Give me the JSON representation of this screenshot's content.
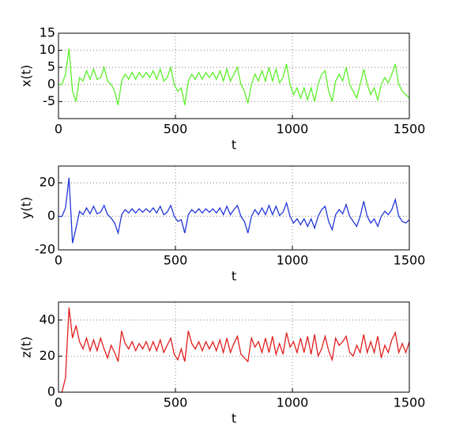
{
  "chart_data": [
    {
      "type": "line",
      "xlabel": "t",
      "ylabel": "x(t)",
      "color": "#5cf02a",
      "grid": true,
      "xlim": [
        0,
        1500
      ],
      "xticks": [
        0,
        500,
        1000,
        1500
      ],
      "ylim": [
        -10,
        15
      ],
      "yticks": [
        -5,
        0,
        5,
        10,
        15
      ],
      "x": [
        0,
        15,
        30,
        45,
        60,
        75,
        90,
        105,
        120,
        135,
        150,
        165,
        180,
        195,
        210,
        225,
        240,
        255,
        270,
        285,
        300,
        315,
        330,
        345,
        360,
        375,
        390,
        405,
        420,
        435,
        450,
        465,
        480,
        495,
        510,
        525,
        540,
        555,
        570,
        585,
        600,
        615,
        630,
        645,
        660,
        675,
        690,
        705,
        720,
        735,
        750,
        765,
        780,
        795,
        810,
        825,
        840,
        855,
        870,
        885,
        900,
        915,
        930,
        945,
        960,
        975,
        990,
        1005,
        1020,
        1035,
        1050,
        1065,
        1080,
        1095,
        1110,
        1125,
        1140,
        1155,
        1170,
        1185,
        1200,
        1215,
        1230,
        1245,
        1260,
        1275,
        1290,
        1305,
        1320,
        1335,
        1350,
        1365,
        1380,
        1395,
        1410,
        1425,
        1440,
        1455,
        1470,
        1485,
        1500
      ],
      "values": [
        0,
        0,
        3,
        10.5,
        -2,
        -5,
        2,
        1,
        4,
        1.5,
        4.5,
        1.5,
        2,
        5,
        1,
        0,
        -2,
        -6,
        1,
        3,
        1.5,
        3.5,
        1.5,
        3.5,
        2,
        3.5,
        2,
        4,
        1.5,
        4.5,
        1,
        2,
        5,
        0,
        -2,
        -1,
        -6,
        1,
        3,
        1.5,
        3.5,
        1.5,
        3.5,
        2,
        3.5,
        1.5,
        4,
        1,
        4.5,
        1,
        3,
        5,
        0,
        -2,
        -5.5,
        0,
        3,
        1,
        4,
        1,
        5,
        1,
        4.5,
        0.5,
        2,
        6,
        0,
        -3,
        -1,
        -4,
        -1,
        -4.5,
        -1,
        -5,
        0,
        3,
        4,
        -2,
        -5,
        1,
        3,
        1,
        5,
        0,
        -2,
        -4,
        0,
        4.5,
        0,
        -3,
        -1,
        -4.5,
        0,
        2,
        0.5,
        3,
        6,
        0,
        -2,
        -3,
        -4
      ]
    },
    {
      "type": "line",
      "xlabel": "t",
      "ylabel": "y(t)",
      "color": "#2236d8",
      "grid": true,
      "xlim": [
        0,
        1500
      ],
      "xticks": [
        0,
        500,
        1000,
        1500
      ],
      "ylim": [
        -20,
        30
      ],
      "yticks": [
        -20,
        0,
        20
      ],
      "x": [
        0,
        15,
        30,
        45,
        60,
        75,
        90,
        105,
        120,
        135,
        150,
        165,
        180,
        195,
        210,
        225,
        240,
        255,
        270,
        285,
        300,
        315,
        330,
        345,
        360,
        375,
        390,
        405,
        420,
        435,
        450,
        465,
        480,
        495,
        510,
        525,
        540,
        555,
        570,
        585,
        600,
        615,
        630,
        645,
        660,
        675,
        690,
        705,
        720,
        735,
        750,
        765,
        780,
        795,
        810,
        825,
        840,
        855,
        870,
        885,
        900,
        915,
        930,
        945,
        960,
        975,
        990,
        1005,
        1020,
        1035,
        1050,
        1065,
        1080,
        1095,
        1110,
        1125,
        1140,
        1155,
        1170,
        1185,
        1200,
        1215,
        1230,
        1245,
        1260,
        1275,
        1290,
        1305,
        1320,
        1335,
        1350,
        1365,
        1380,
        1395,
        1410,
        1425,
        1440,
        1455,
        1470,
        1485,
        1500
      ],
      "values": [
        0,
        0,
        5,
        23,
        -16,
        -7,
        3,
        1,
        5,
        1.5,
        6,
        1.5,
        2.5,
        6.5,
        1,
        -1,
        -4,
        -10,
        1,
        4,
        2,
        4.5,
        2,
        4.5,
        2.5,
        4.5,
        2.5,
        5,
        2,
        6,
        1,
        2.5,
        6.5,
        0,
        -3,
        -2,
        -10,
        1,
        4,
        2,
        4.5,
        2,
        4.5,
        2.5,
        4.5,
        2,
        5,
        1,
        6,
        1,
        4,
        6.5,
        0,
        -3,
        -10,
        0,
        4,
        1,
        5,
        1,
        6.5,
        1,
        6,
        0.5,
        2.5,
        8,
        0,
        -4,
        -1.5,
        -5,
        -1.5,
        -6,
        -1.5,
        -7,
        0,
        4,
        6,
        -3,
        -8,
        1,
        4,
        1.5,
        7,
        0,
        -3,
        -6,
        0,
        9,
        0,
        -4,
        -1.5,
        -6,
        0,
        3,
        1,
        4,
        10,
        0,
        -3,
        -4,
        -2
      ]
    },
    {
      "type": "line",
      "xlabel": "t",
      "ylabel": "z(t)",
      "color": "#e01e1e",
      "grid": true,
      "xlim": [
        0,
        1500
      ],
      "xticks": [
        0,
        500,
        1000,
        1500
      ],
      "ylim": [
        0,
        50
      ],
      "yticks": [
        0,
        20,
        40
      ],
      "x": [
        0,
        15,
        30,
        45,
        60,
        75,
        90,
        105,
        120,
        135,
        150,
        165,
        180,
        195,
        210,
        225,
        240,
        255,
        270,
        285,
        300,
        315,
        330,
        345,
        360,
        375,
        390,
        405,
        420,
        435,
        450,
        465,
        480,
        495,
        510,
        525,
        540,
        555,
        570,
        585,
        600,
        615,
        630,
        645,
        660,
        675,
        690,
        705,
        720,
        735,
        750,
        765,
        780,
        795,
        810,
        825,
        840,
        855,
        870,
        885,
        900,
        915,
        930,
        945,
        960,
        975,
        990,
        1005,
        1020,
        1035,
        1050,
        1065,
        1080,
        1095,
        1110,
        1125,
        1140,
        1155,
        1170,
        1185,
        1200,
        1215,
        1230,
        1245,
        1260,
        1275,
        1290,
        1305,
        1320,
        1335,
        1350,
        1365,
        1380,
        1395,
        1410,
        1425,
        1440,
        1455,
        1470,
        1485,
        1500
      ],
      "values": [
        0,
        0,
        8,
        47,
        30,
        37,
        28,
        24,
        30,
        23,
        29,
        23,
        30,
        24,
        19,
        26,
        22,
        17,
        34,
        27,
        24,
        28,
        23,
        27,
        24,
        28,
        23,
        28,
        23,
        29,
        22,
        26,
        30,
        21,
        18,
        24,
        17,
        34,
        27,
        24,
        28,
        23,
        28,
        24,
        28,
        23,
        29,
        22,
        30,
        22,
        27,
        31,
        21,
        19,
        17,
        30,
        25,
        28,
        22,
        30,
        22,
        31,
        21,
        27,
        21,
        33,
        25,
        28,
        22,
        30,
        22,
        31,
        21,
        32,
        20,
        24,
        31,
        23,
        18,
        30,
        26,
        28,
        31,
        22,
        20,
        26,
        22,
        32,
        22,
        28,
        22,
        31,
        19,
        26,
        22,
        29,
        33,
        22,
        27,
        22,
        28
      ]
    }
  ]
}
